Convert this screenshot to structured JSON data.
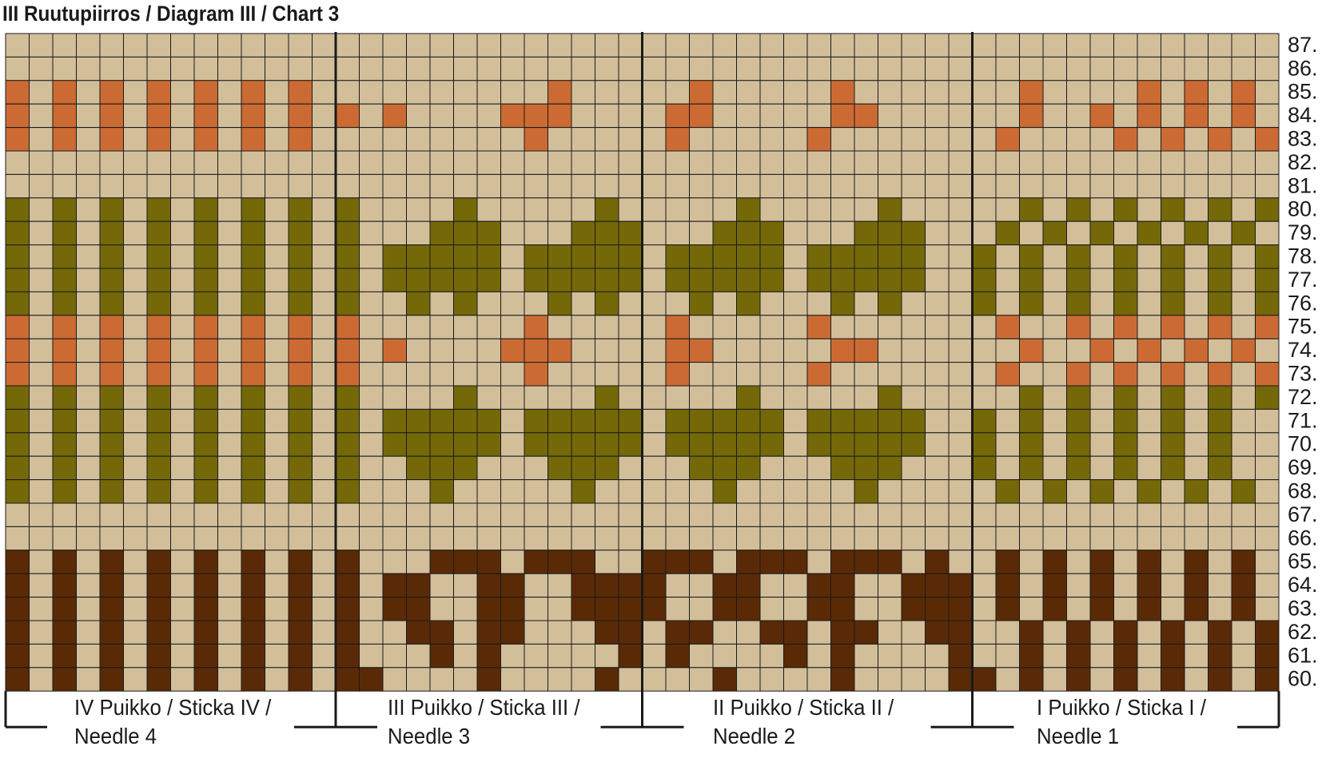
{
  "title": "III Ruutupiirros / Diagram III / Chart 3",
  "colors": {
    "beige": "#d2bf9a",
    "orange": "#cc6a33",
    "olive": "#756808",
    "brown": "#5a2a06",
    "grid": "#1a1a1a"
  },
  "legend": {
    "B": "beige",
    "O": "orange",
    "G": "olive",
    "D": "brown"
  },
  "rows": [
    {
      "label": "87.",
      "cells": "BBBBBBBBBBBBBBBBBBBBBBBBBBBBBBBBBBBBBBBBBBBBBBBBBBBBBB"
    },
    {
      "label": "86.",
      "cells": "BBBBBBBBBBBBBBBBBBBBBBBBBBBBBBBBBBBBBBBBBBBBBBBBBBBBBB"
    },
    {
      "label": "85.",
      "cells": "OBOBOBOBOBOBOBBBBBBBBBBOBBBBBOBBBBBOBBBBBBBOBBBBOBOBOBOBOB"
    },
    {
      "label": "84.",
      "cells": "OBOBOBOBOBOBOBOBOBBBBOOOBBBBOOBBBBBOOBBBBBBOBBOBOBOBOBOBOB"
    },
    {
      "label": "83.",
      "cells": "OBOBOBOBOBOBOBBBBBBBBBOBBBBBOBBBBBOBBBBBBBOBBBBOBOBOBOBOBOB"
    },
    {
      "label": "82.",
      "cells": "BBBBBBBBBBBBBBBBBBBBBBBBBBBBBBBBBBBBBBBBBBBBBBBBBBBBBB"
    },
    {
      "label": "81.",
      "cells": "BBBBBBBBBBBBBBBBBBBBBBBBBBBBBBBBBBBBBBBBBBBBBBBBBBBBBB"
    },
    {
      "label": "80.",
      "cells": "GBGBGBGBGBGBGBGBBBBGBBBBBGBBBBBGBBBBBGBBBBBGBGBGBGBGBGBG"
    },
    {
      "label": "79.",
      "cells": "GBGBGBGBGBGBGBGBBBGGGBBBGGGBBBGGGBBBGGGBBBGBGBGBGBGBGBG"
    },
    {
      "label": "78.",
      "cells": "GBGBGBGBGBGBGBGBGGGGGBGGGGGBGGGGGBGGGGGBBGBGBGBGBGBGBG"
    },
    {
      "label": "77.",
      "cells": "GBGBGBGBGBGBGBGBGGGGGBGGGGGBGGGGGBGGGGGBBGBGBGBGBGBGBG"
    },
    {
      "label": "76.",
      "cells": "GBGBGBGBGBGBGBGBBGBGBBBGBGBBBGBGBBBGBGBBBGBGBGBGBGBGBG"
    },
    {
      "label": "75.",
      "cells": "OBOBOBOBOBOBOBOBBBBBBBOBBBBBOBBBBBOBBBBBBBOBBOBOBOBOBOB"
    },
    {
      "label": "74.",
      "cells": "OBOBOBOBOBOBOBOBOBBBBOOOBBBBOOBBBBBOOBBBBBBOBBOBOBOBOBOB"
    },
    {
      "label": "73.",
      "cells": "OBOBOBOBOBOBOBOBBBBBBBOBBBBBOBBBBBOBBBBBBBOBBOBOBOBOBOB"
    },
    {
      "label": "72.",
      "cells": "GBGBGBGBGBGBGBGBBBBGBBBBBGBBBBBGBBBBBGBBBBBGBGBGBGBGBG"
    },
    {
      "label": "71.",
      "cells": "GBGBGBGBGBGBGBGBGGGGGBGGGGGBGGGGGBGGGGGBBGBGBGBGBGBG"
    },
    {
      "label": "70.",
      "cells": "GBGBGBGBGBGBGBGBGGGGGBGGGGGBGGGGGBGGGGGBBGBGBGBGBGBG"
    },
    {
      "label": "69.",
      "cells": "GBGBGBGBGBGBGBGBBGGGBBBGGGBBBGGGBBBGGGBBBGBGBGBGBGBG"
    },
    {
      "label": "68.",
      "cells": "GBGBGBGBGBGBGBGBBBGBBBBBGBBBBBGBBBBBGBBBBBGBGBGBGBGBG"
    },
    {
      "label": "67.",
      "cells": "BBBBBBBBBBBBBBBBBBBBBBBBBBBBBBBBBBBBBBBBBBBBBBBBBBBBBB"
    },
    {
      "label": "66.",
      "cells": "BBBBBBBBBBBBBBBBBBBBBBBBBBBBBBBBBBBBBBBBBBBBBBBBBBBBBB"
    },
    {
      "label": "65.",
      "cells": "DBDBDBDBDBDBDBDBBBDDDBDDDBBDDDBDDDBDDDBDBBDBDBDBDBDBDBDB"
    },
    {
      "label": "64.",
      "cells": "DBDBDBDBDBDBDBDBDDBBDDBBDDDDBBDDBBDDBBDDDBDBDBDBDBDBDBDB"
    },
    {
      "label": "63.",
      "cells": "DBDBDBDBDBDBDBDBDDBBDDBBDDDDBBDDBBDDBBDDDBDBDBDBDBDBDBDB"
    },
    {
      "label": "62.",
      "cells": "DBDBDBDBDBDBDBDBBDDBDDBBBDDBDDBBDDBDDBBDDBBDBDBDBDBDBDBDB"
    },
    {
      "label": "61.",
      "cells": "DBDBDBDBDBDBDBDBBBDBDBBBBBDBDBBBBDBDBBBBDBBDBDBDBDBDBDBDB"
    },
    {
      "label": "60.",
      "cells": "DBDBDBDBDBDBDBDDBBBBDBBBBDBBBBDBBBBDBBBBDDBDBDBDBDBDBDBD"
    }
  ],
  "needles": [
    {
      "line1": "IV Puikko / Sticka IV /",
      "line2": "Needle 4"
    },
    {
      "line1": "III Puikko / Sticka III /",
      "line2": "Needle 3"
    },
    {
      "line1": "II Puikko / Sticka II /",
      "line2": "Needle 2"
    },
    {
      "line1": "I Puikko / Sticka I /",
      "line2": "Needle 1"
    }
  ]
}
